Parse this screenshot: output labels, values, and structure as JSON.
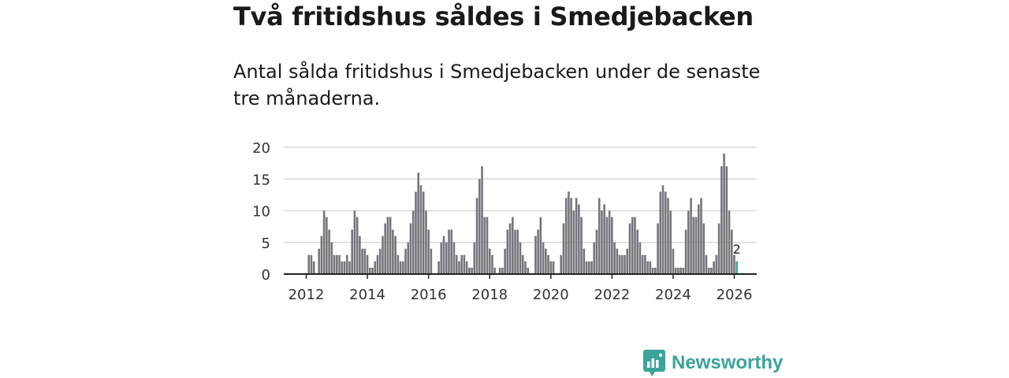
{
  "header": {
    "title": "Två fritidshus såldes i Smedjebacken",
    "subtitle": "Antal sålda fritidshus i Smedjebacken under de senaste tre månaderna."
  },
  "brand": {
    "name": "Newsworthy",
    "icon": "newsworthy-logo-icon",
    "color": "#3aa39a"
  },
  "colors": {
    "bar": "#75747b",
    "highlight": "#3aa39a",
    "grid": "#d9d9d9",
    "axis": "#222222"
  },
  "chart_data": {
    "type": "bar",
    "title": "",
    "xlabel": "",
    "ylabel": "",
    "ylim": [
      0,
      20
    ],
    "y_ticks": [
      0,
      5,
      10,
      15,
      20
    ],
    "x_ticks": [
      "2012",
      "2014",
      "2016",
      "2018",
      "2020",
      "2022",
      "2024",
      "2026"
    ],
    "grid": true,
    "start_year": 2012,
    "start_month": 1,
    "frequency": "monthly",
    "values": [
      0,
      3,
      3,
      2,
      0,
      4,
      6,
      10,
      9,
      7,
      5,
      3,
      3,
      3,
      2,
      2,
      3,
      2,
      7,
      10,
      9,
      6,
      4,
      4,
      3,
      1,
      1,
      2,
      3,
      4,
      6,
      8,
      9,
      9,
      7,
      6,
      3,
      2,
      2,
      4,
      5,
      8,
      10,
      13,
      16,
      14,
      13,
      10,
      7,
      4,
      0,
      0,
      2,
      5,
      6,
      5,
      7,
      7,
      5,
      3,
      2,
      3,
      3,
      2,
      1,
      1,
      5,
      12,
      15,
      17,
      9,
      9,
      4,
      3,
      1,
      0,
      1,
      1,
      4,
      7,
      8,
      9,
      7,
      7,
      5,
      3,
      2,
      1,
      0,
      0,
      6,
      7,
      9,
      5,
      4,
      3,
      2,
      2,
      0,
      0,
      3,
      8,
      12,
      13,
      12,
      10,
      12,
      11,
      9,
      4,
      2,
      2,
      2,
      5,
      7,
      12,
      10,
      11,
      9,
      10,
      9,
      5,
      4,
      3,
      3,
      3,
      4,
      8,
      9,
      9,
      7,
      5,
      3,
      3,
      2,
      2,
      1,
      1,
      8,
      13,
      14,
      13,
      12,
      10,
      4,
      1,
      1,
      1,
      1,
      7,
      10,
      12,
      9,
      9,
      11,
      12,
      8,
      3,
      1,
      1,
      2,
      3,
      8,
      17,
      19,
      17,
      10,
      7,
      3,
      2
    ],
    "highlight_last": 1,
    "last_value_label": "2"
  }
}
